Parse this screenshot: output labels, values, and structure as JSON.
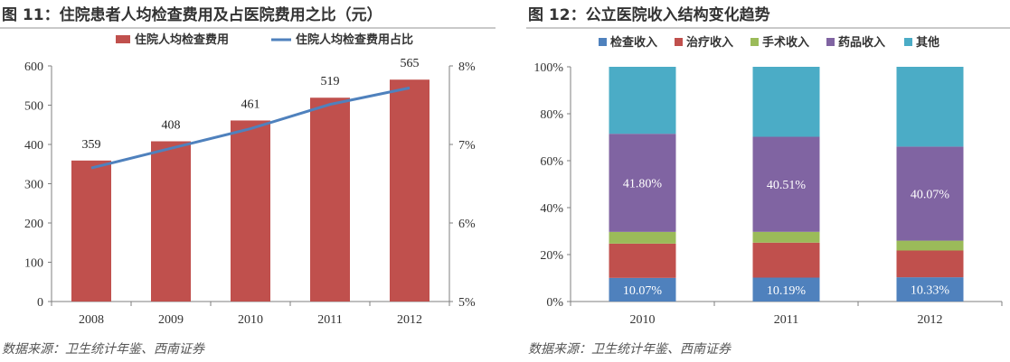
{
  "figure_left": {
    "title": "图 11：住院患者人均检查费用及占医院费用之比（元）",
    "source": "数据来源：卫生统计年鉴、西南证券"
  },
  "figure_right": {
    "title": "图 12：公立医院收入结构变化趋势",
    "source": "数据来源：卫生统计年鉴、西南证券"
  },
  "chart_data": [
    {
      "type": "bar",
      "categories": [
        "2008",
        "2009",
        "2010",
        "2011",
        "2012"
      ],
      "series": [
        {
          "name": "住院人均检查费用",
          "type": "bar",
          "axis": "left",
          "values": [
            359,
            408,
            461,
            519,
            565
          ],
          "color": "#c0504d",
          "labels": [
            "359",
            "408",
            "461",
            "519",
            "565"
          ]
        },
        {
          "name": "住院人均检查费用占比",
          "type": "line",
          "axis": "right",
          "values": [
            0.067,
            0.0695,
            0.072,
            0.0751,
            0.0772
          ],
          "color": "#4f81bd"
        }
      ],
      "ylim": [
        0,
        600
      ],
      "y_ticks": [
        "0",
        "100",
        "200",
        "300",
        "400",
        "500",
        "600"
      ],
      "y2lim": [
        0.05,
        0.08
      ],
      "y2_ticks": [
        "5%",
        "6%",
        "7%",
        "8%"
      ],
      "legend_position": "top",
      "grid": false
    },
    {
      "type": "bar",
      "stacked": "percent",
      "categories": [
        "2010",
        "2011",
        "2012"
      ],
      "series": [
        {
          "name": "检查收入",
          "values": [
            10.07,
            10.19,
            10.33
          ],
          "color": "#4f81bd",
          "labels": [
            "10.07%",
            "10.19%",
            "10.33%"
          ]
        },
        {
          "name": "治疗收入",
          "values": [
            14.6,
            14.9,
            11.4
          ],
          "color": "#c0504d"
        },
        {
          "name": "手术收入",
          "values": [
            5.0,
            4.6,
            4.2
          ],
          "color": "#9bbb59"
        },
        {
          "name": "药品收入",
          "values": [
            41.8,
            40.51,
            40.07
          ],
          "color": "#8064a2",
          "labels": [
            "41.80%",
            "40.51%",
            "40.07%"
          ]
        },
        {
          "name": "其他",
          "values": [
            28.53,
            29.8,
            34.0
          ],
          "color": "#4bacc6"
        }
      ],
      "ylim": [
        0,
        100
      ],
      "y_ticks": [
        "0%",
        "20%",
        "40%",
        "60%",
        "80%",
        "100%"
      ],
      "legend_position": "top",
      "grid": false
    }
  ]
}
